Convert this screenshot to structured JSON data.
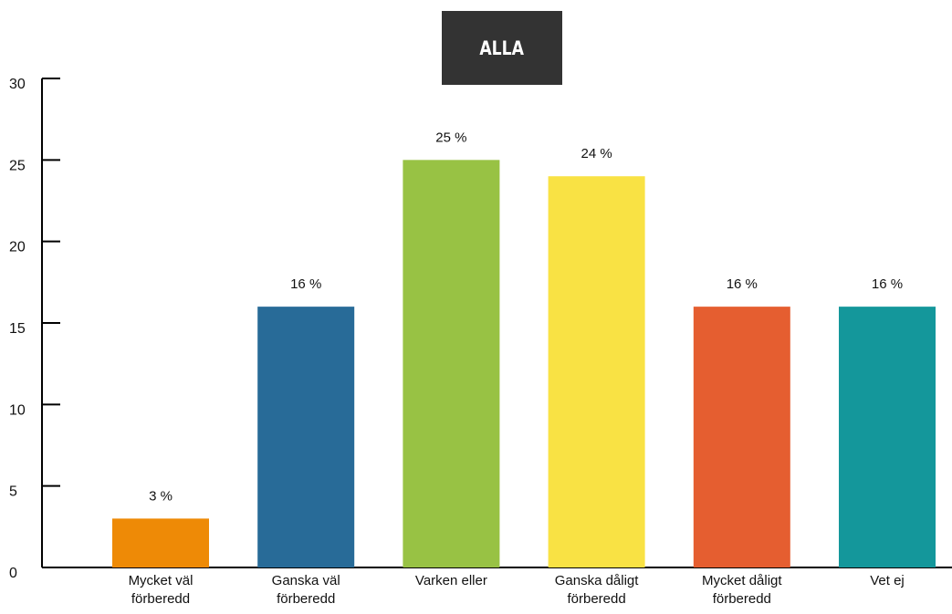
{
  "chart_data": {
    "type": "bar",
    "title": "ALLA",
    "categories": [
      [
        "Mycket väl",
        "förberedd"
      ],
      [
        "Ganska väl",
        "förberedd"
      ],
      [
        "Varken eller"
      ],
      [
        "Ganska dåligt",
        "förberedd"
      ],
      [
        "Mycket dåligt",
        "förberedd"
      ],
      [
        "Vet ej"
      ]
    ],
    "values": [
      3,
      16,
      25,
      24,
      16,
      16
    ],
    "data_labels": [
      "3 %",
      "16 %",
      "25 %",
      "24 %",
      "16 %",
      "16 %"
    ],
    "colors": [
      "#ee8a06",
      "#286b98",
      "#98c244",
      "#f9e244",
      "#e55e30",
      "#14979b"
    ],
    "yticks": [
      "0",
      "5",
      "10",
      "15",
      "20",
      "25",
      "30"
    ],
    "ylim": [
      0,
      30
    ],
    "grid": false,
    "legend": "none"
  }
}
